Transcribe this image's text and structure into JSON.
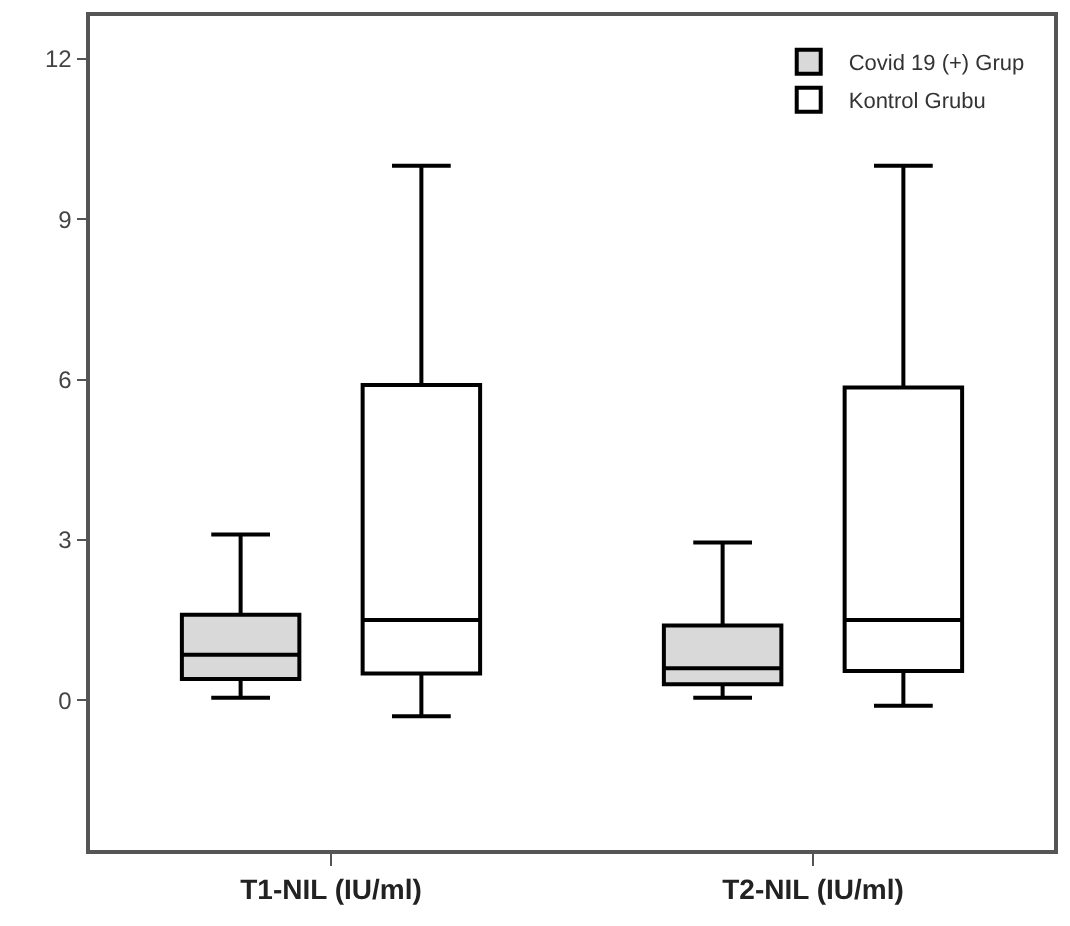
{
  "chart_data": {
    "type": "box",
    "categories": [
      "T1-NIL (IU/ml)",
      "T2-NIL (IU/ml)"
    ],
    "series": [
      {
        "name": "Covid 19 (+) Grup",
        "color": "#d9d9d9",
        "boxes": [
          {
            "low": 0.05,
            "q1": 0.4,
            "median": 0.85,
            "q3": 1.6,
            "high": 3.1
          },
          {
            "low": 0.05,
            "q1": 0.3,
            "median": 0.6,
            "q3": 1.4,
            "high": 2.95
          }
        ]
      },
      {
        "name": "Kontrol Grubu",
        "color": "#ffffff",
        "boxes": [
          {
            "low": -0.3,
            "q1": 0.5,
            "median": 1.5,
            "q3": 5.9,
            "high": 10
          },
          {
            "low": -0.1,
            "q1": 0.55,
            "median": 1.5,
            "q3": 5.85,
            "high": 10
          }
        ]
      }
    ],
    "ylim": [
      -2.8,
      12.8
    ],
    "yticks": [
      0,
      3,
      6,
      9,
      12
    ],
    "grid": false,
    "legend": "top right"
  }
}
